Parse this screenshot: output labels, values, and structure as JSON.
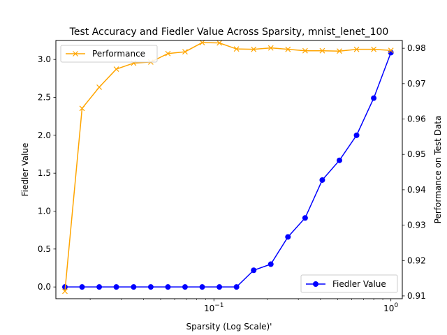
{
  "chart_data": {
    "type": "line",
    "title": "Test Accuracy and Fiedler Value Across Sparsity, mnist_lenet_100",
    "xlabel": "Sparsity (Log Scale)'",
    "ylabel_left": "Fiedler Value",
    "ylabel_right": "Performance on Test Data",
    "x_scale": "log",
    "xlim": [
      0.0128,
      1.16
    ],
    "ylim_left": [
      -0.155,
      3.25
    ],
    "ylim_right": [
      0.9092,
      0.9822
    ],
    "x_ticks": [
      {
        "value": 0.1,
        "base": "10",
        "exp": "−1"
      },
      {
        "value": 1,
        "base": "10",
        "exp": "0"
      }
    ],
    "y_ticks_left": [
      {
        "value": 0.0,
        "label": "0.0"
      },
      {
        "value": 0.5,
        "label": "0.5"
      },
      {
        "value": 1.0,
        "label": "1.0"
      },
      {
        "value": 1.5,
        "label": "1.5"
      },
      {
        "value": 2.0,
        "label": "2.0"
      },
      {
        "value": 2.5,
        "label": "2.5"
      },
      {
        "value": 3.0,
        "label": "3.0"
      }
    ],
    "y_ticks_right": [
      {
        "value": 0.91,
        "label": "0.91"
      },
      {
        "value": 0.92,
        "label": "0.92"
      },
      {
        "value": 0.93,
        "label": "0.93"
      },
      {
        "value": 0.94,
        "label": "0.94"
      },
      {
        "value": 0.95,
        "label": "0.95"
      },
      {
        "value": 0.96,
        "label": "0.96"
      },
      {
        "value": 0.97,
        "label": "0.97"
      },
      {
        "value": 0.98,
        "label": "0.98"
      }
    ],
    "x": [
      0.0144,
      0.018,
      0.0225,
      0.0281,
      0.0352,
      0.044,
      0.055,
      0.0687,
      0.0859,
      0.1074,
      0.1342,
      0.1678,
      0.2097,
      0.2621,
      0.3277,
      0.4096,
      0.512,
      0.64,
      0.8,
      1.0
    ],
    "series": [
      {
        "name": "Performance",
        "axis": "right",
        "color": "#ffa500",
        "marker": "x",
        "values": [
          0.9113,
          0.963,
          0.969,
          0.9741,
          0.9758,
          0.9761,
          0.9785,
          0.979,
          0.9816,
          0.9815,
          0.9798,
          0.9797,
          0.9801,
          0.9797,
          0.9793,
          0.9793,
          0.9792,
          0.9797,
          0.9797,
          0.9794
        ]
      },
      {
        "name": "Fiedler Value",
        "axis": "left",
        "color": "#0000ff",
        "marker": "o",
        "values": [
          0.0,
          0.0,
          0.0,
          0.0,
          0.0,
          0.0,
          0.0,
          0.0,
          0.0,
          0.0,
          0.0,
          0.22,
          0.3,
          0.66,
          0.91,
          1.41,
          1.67,
          2.0,
          2.49,
          3.09
        ]
      }
    ],
    "legends": [
      {
        "placement": "upper-left",
        "series": "Performance"
      },
      {
        "placement": "lower-right",
        "series": "Fiedler Value"
      }
    ],
    "grid": false
  }
}
